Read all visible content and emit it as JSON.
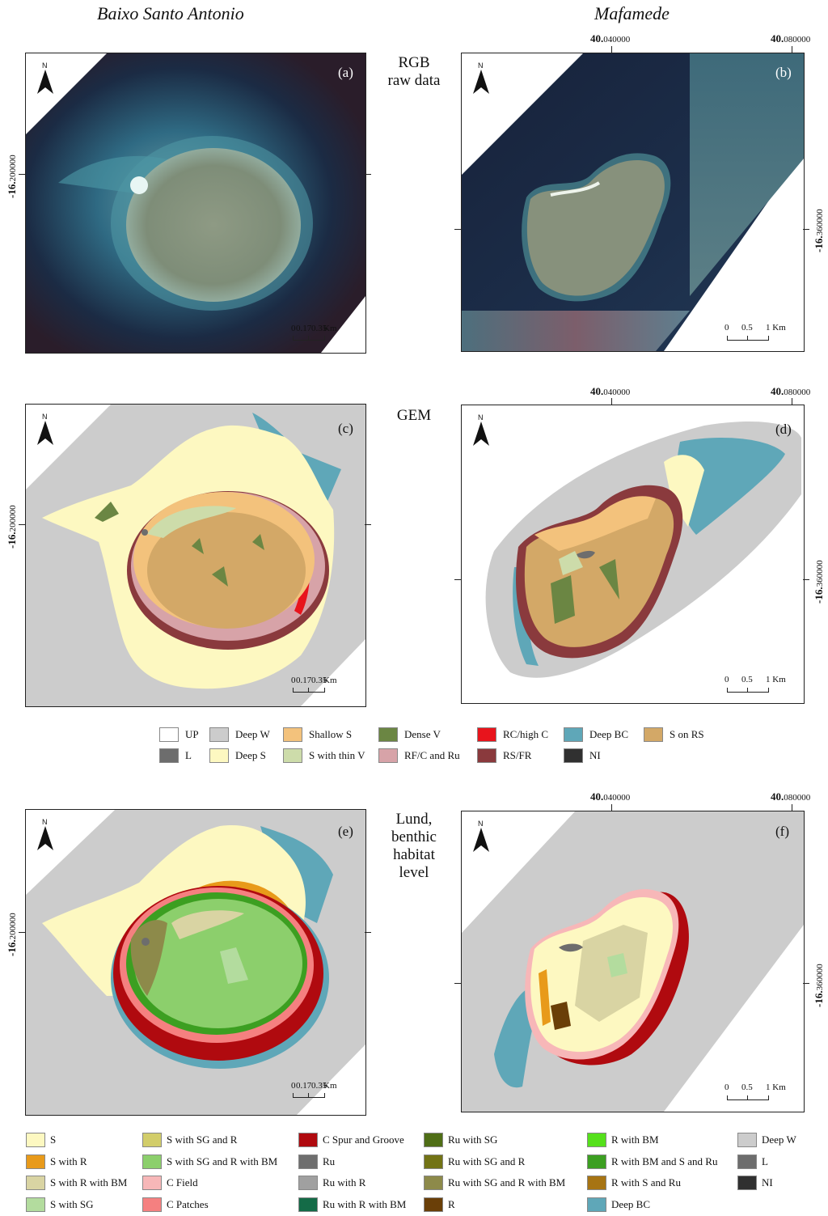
{
  "titles": {
    "left": "Baixo Santo Antonio",
    "right": "Mafamede"
  },
  "row_labels": {
    "rgb": [
      "RGB",
      "raw data"
    ],
    "gem": [
      "GEM"
    ],
    "lund": [
      "Lund,",
      "benthic",
      "habitat",
      "level"
    ]
  },
  "panels": [
    "(a)",
    "(b)",
    "(c)",
    "(d)",
    "(e)",
    "(f)"
  ],
  "north_label": "N",
  "scales": {
    "left": [
      "0",
      "0.17",
      "0.35",
      "Km"
    ],
    "right": [
      "0",
      "0.5",
      "1 Km"
    ]
  },
  "coords": {
    "x1_bold": "40.",
    "x1": "040000",
    "x2_bold": "40.",
    "x2": "080000",
    "left_y_bold": "-16.",
    "left_y": "200000",
    "right_y_bold": "-16.",
    "right_y": "360000"
  },
  "legend_gem": [
    {
      "label": "UP",
      "color": "#ffffff"
    },
    {
      "label": "Deep W",
      "color": "#cccccc"
    },
    {
      "label": "Shallow S",
      "color": "#f3c27c"
    },
    {
      "label": "Dense V",
      "color": "#6b8643"
    },
    {
      "label": "RC/high C",
      "color": "#e8141c"
    },
    {
      "label": "Deep BC",
      "color": "#5fa7b8"
    },
    {
      "label": "S on RS",
      "color": "#d3a867"
    },
    {
      "label": "L",
      "color": "#6d6d6d"
    },
    {
      "label": "Deep S",
      "color": "#fdf8c1"
    },
    {
      "label": "S with thin V",
      "color": "#cddcaa"
    },
    {
      "label": "RF/C and Ru",
      "color": "#d7a3a8"
    },
    {
      "label": "RS/FR",
      "color": "#8a3a3d"
    },
    {
      "label": "NI",
      "color": "#303030"
    }
  ],
  "legend_lund": [
    {
      "label": "S",
      "color": "#fdf8c1"
    },
    {
      "label": "S with R",
      "color": "#e89a1a"
    },
    {
      "label": "S with R with BM",
      "color": "#d9d4a3"
    },
    {
      "label": "S with SG",
      "color": "#b3dc9e"
    },
    {
      "label": "S with SG and R",
      "color": "#d2cd6a"
    },
    {
      "label": "S with SG and R with BM",
      "color": "#8ccf6c"
    },
    {
      "label": "C Field",
      "color": "#f7b7b8"
    },
    {
      "label": "C Patches",
      "color": "#f58080"
    },
    {
      "label": "C Spur and Groove",
      "color": "#b00a0f"
    },
    {
      "label": "Ru",
      "color": "#6e6e6e"
    },
    {
      "label": "Ru with R",
      "color": "#a0a0a0"
    },
    {
      "label": "Ru with R with BM",
      "color": "#146b47"
    },
    {
      "label": "Ru with SG",
      "color": "#4f6e16"
    },
    {
      "label": "Ru with SG and R",
      "color": "#727315"
    },
    {
      "label": "Ru with SG and R with BM",
      "color": "#8d8a4a"
    },
    {
      "label": "R",
      "color": "#6a3f08"
    },
    {
      "label": "R with BM",
      "color": "#55e01b"
    },
    {
      "label": "R with BM and S and Ru",
      "color": "#3c9f21"
    },
    {
      "label": "R with S and Ru",
      "color": "#a77413"
    },
    {
      "label": "Deep BC",
      "color": "#5fa7b8"
    },
    {
      "label": "Deep W",
      "color": "#cccccc"
    },
    {
      "label": "L",
      "color": "#6d6d6d"
    },
    {
      "label": "NI",
      "color": "#303030"
    }
  ]
}
